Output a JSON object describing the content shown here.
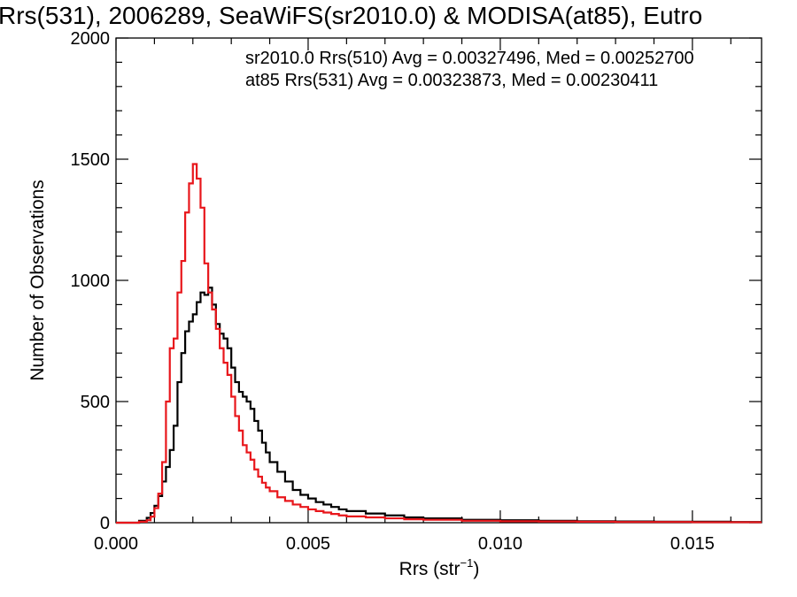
{
  "chart_data": {
    "type": "line",
    "title": "Rrs(531), 2006289, SeaWiFS(sr2010.0) & MODISA(at85), Eutro",
    "xlabel_main": "Rrs (str",
    "xlabel_sup": "−1",
    "xlabel_end": ")",
    "ylabel": "Number of Observations",
    "xlim": [
      0.0,
      0.0168
    ],
    "ylim": [
      0,
      2000
    ],
    "x_ticks": [
      0.0,
      0.005,
      0.01,
      0.015
    ],
    "x_tick_labels": [
      "0.000",
      "0.005",
      "0.010",
      "0.015"
    ],
    "y_ticks": [
      0,
      500,
      1000,
      1500,
      2000
    ],
    "y_tick_labels": [
      "0",
      "500",
      "1000",
      "1500",
      "2000"
    ],
    "grid": false,
    "legend_placement": "top-right",
    "annotations": [
      {
        "text": "sr2010.0 Rrs(510) Avg = 0.00327496, Med = 0.00252700",
        "color": "#000000"
      },
      {
        "text": "at85 Rrs(531) Avg = 0.00323873, Med = 0.00230411",
        "color": "#e8161b"
      }
    ],
    "series": [
      {
        "color": "#000000",
        "x": [
          0.0,
          0.0004,
          0.0006,
          0.0008,
          0.0009,
          0.001,
          0.0011,
          0.0012,
          0.0013,
          0.0014,
          0.0015,
          0.0016,
          0.0017,
          0.0018,
          0.0019,
          0.002,
          0.0021,
          0.0022,
          0.0023,
          0.0024,
          0.0025,
          0.0026,
          0.0027,
          0.0028,
          0.0029,
          0.003,
          0.0031,
          0.0032,
          0.0033,
          0.0034,
          0.0035,
          0.0036,
          0.0037,
          0.0038,
          0.0039,
          0.004,
          0.0042,
          0.0044,
          0.0046,
          0.0048,
          0.005,
          0.0052,
          0.0054,
          0.0056,
          0.0058,
          0.006,
          0.0065,
          0.007,
          0.0075,
          0.008,
          0.009,
          0.01,
          0.011,
          0.012,
          0.013,
          0.014,
          0.015,
          0.016,
          0.0168
        ],
        "y": [
          0,
          0,
          8,
          20,
          40,
          70,
          110,
          170,
          230,
          300,
          400,
          580,
          700,
          790,
          830,
          860,
          910,
          950,
          940,
          970,
          900,
          820,
          780,
          760,
          720,
          640,
          580,
          540,
          520,
          500,
          470,
          420,
          380,
          330,
          290,
          250,
          210,
          170,
          135,
          115,
          100,
          85,
          75,
          65,
          55,
          48,
          38,
          30,
          22,
          18,
          12,
          10,
          8,
          6,
          5,
          4,
          4,
          3,
          3
        ]
      },
      {
        "color": "#e8161b",
        "x": [
          0.0,
          0.0004,
          0.0006,
          0.0008,
          0.0009,
          0.001,
          0.0011,
          0.0012,
          0.0013,
          0.0014,
          0.0015,
          0.0016,
          0.0017,
          0.0018,
          0.0019,
          0.002,
          0.0021,
          0.0022,
          0.0023,
          0.0024,
          0.0025,
          0.0026,
          0.0027,
          0.0028,
          0.0029,
          0.003,
          0.0031,
          0.0032,
          0.0033,
          0.0034,
          0.0035,
          0.0036,
          0.0037,
          0.0038,
          0.0039,
          0.004,
          0.0042,
          0.0044,
          0.0046,
          0.0048,
          0.005,
          0.0052,
          0.0054,
          0.0056,
          0.0058,
          0.006,
          0.0065,
          0.007,
          0.0075,
          0.008,
          0.009,
          0.01,
          0.011,
          0.012,
          0.013,
          0.014,
          0.015,
          0.016,
          0.0168
        ],
        "y": [
          0,
          0,
          4,
          10,
          25,
          60,
          120,
          250,
          500,
          720,
          760,
          950,
          1080,
          1280,
          1400,
          1480,
          1420,
          1300,
          1070,
          950,
          880,
          800,
          720,
          660,
          610,
          520,
          440,
          380,
          320,
          290,
          260,
          220,
          190,
          165,
          145,
          130,
          105,
          90,
          75,
          65,
          55,
          48,
          42,
          36,
          30,
          26,
          22,
          18,
          14,
          12,
          8,
          6,
          5,
          4,
          3,
          3,
          2,
          2,
          2
        ]
      }
    ]
  }
}
